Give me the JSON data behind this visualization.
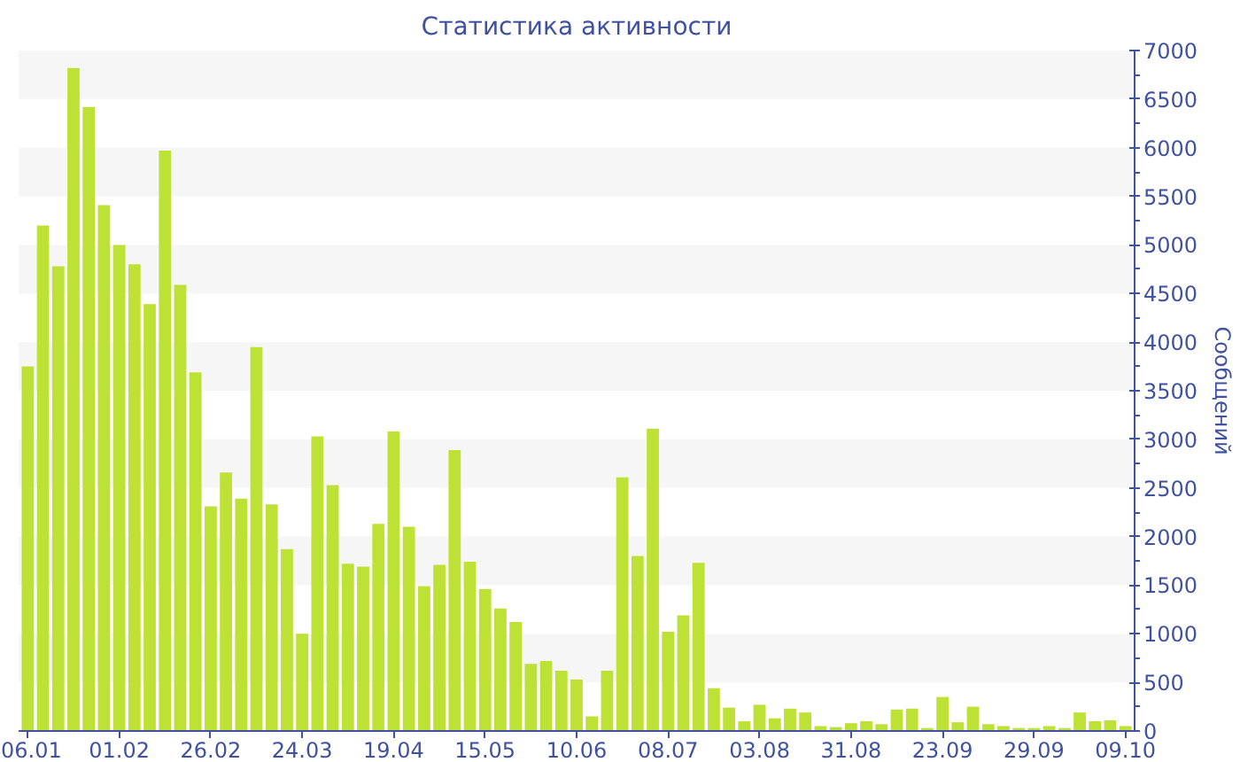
{
  "chart_data": {
    "type": "bar",
    "title": "Статистика активности",
    "ylabel": "Сообщений",
    "categories": [
      "06.01",
      null,
      null,
      null,
      null,
      null,
      "01.02",
      null,
      null,
      null,
      null,
      null,
      "26.02",
      null,
      null,
      null,
      null,
      null,
      "24.03",
      null,
      null,
      null,
      null,
      null,
      "19.04",
      null,
      null,
      null,
      null,
      null,
      "15.05",
      null,
      null,
      null,
      null,
      null,
      "10.06",
      null,
      null,
      null,
      null,
      null,
      "08.07",
      null,
      null,
      null,
      null,
      null,
      "03.08",
      null,
      null,
      null,
      null,
      null,
      "31.08",
      null,
      null,
      null,
      null,
      null,
      "23.09",
      null,
      null,
      null,
      null,
      null,
      "29.09",
      null,
      null,
      null,
      null,
      null,
      "09.10"
    ],
    "values": [
      3750,
      5200,
      4780,
      6820,
      6420,
      5410,
      5000,
      4800,
      4390,
      5970,
      4590,
      3690,
      2310,
      2660,
      2390,
      3950,
      2330,
      1870,
      1000,
      3030,
      2530,
      1720,
      1690,
      2130,
      3080,
      2100,
      1490,
      1710,
      2890,
      1740,
      1460,
      1260,
      1120,
      690,
      720,
      620,
      530,
      150,
      620,
      2610,
      1800,
      3110,
      1020,
      1190,
      1730,
      440,
      240,
      100,
      270,
      130,
      230,
      190,
      50,
      40,
      80,
      100,
      70,
      220,
      230,
      30,
      350,
      90,
      250,
      70,
      50,
      30,
      30,
      50,
      30,
      190,
      100,
      110,
      50
    ],
    "color": "#bde134",
    "ylim": [
      0,
      7000
    ],
    "yticks": [
      0,
      {
        "value": 250,
        "label": null
      },
      500,
      {
        "value": 750,
        "label": null
      },
      1000,
      {
        "value": 1250,
        "label": null
      },
      1500,
      {
        "value": 1750,
        "label": null
      },
      2000,
      {
        "value": 2250,
        "label": null
      },
      2500,
      {
        "value": 2750,
        "label": null
      },
      3000,
      {
        "value": 3250,
        "label": null
      },
      3500,
      {
        "value": 3750,
        "label": null
      },
      4000,
      {
        "value": 4250,
        "label": null
      },
      4500,
      {
        "value": 4750,
        "label": null
      },
      5000,
      {
        "value": 5250,
        "label": null
      },
      5500,
      {
        "value": 5750,
        "label": null
      },
      6000,
      {
        "value": 6250,
        "label": null
      },
      6500,
      {
        "value": 6750,
        "label": null
      },
      7000
    ],
    "bands": [
      {
        "axis": "y",
        "from": 500,
        "to": 1000,
        "color": "#f6f6f6"
      },
      {
        "axis": "y",
        "from": 1500,
        "to": 2000,
        "color": "#f6f6f6"
      },
      {
        "axis": "y",
        "from": 2500,
        "to": 3000,
        "color": "#f6f6f6"
      },
      {
        "axis": "y",
        "from": 3500,
        "to": 4000,
        "color": "#f6f6f6"
      },
      {
        "axis": "y",
        "from": 4500,
        "to": 5000,
        "color": "#f6f6f6"
      },
      {
        "axis": "y",
        "from": 5500,
        "to": 6000,
        "color": "#f6f6f6"
      },
      {
        "axis": "y",
        "from": 6500,
        "to": 7000,
        "color": "#f6f6f6"
      }
    ]
  }
}
